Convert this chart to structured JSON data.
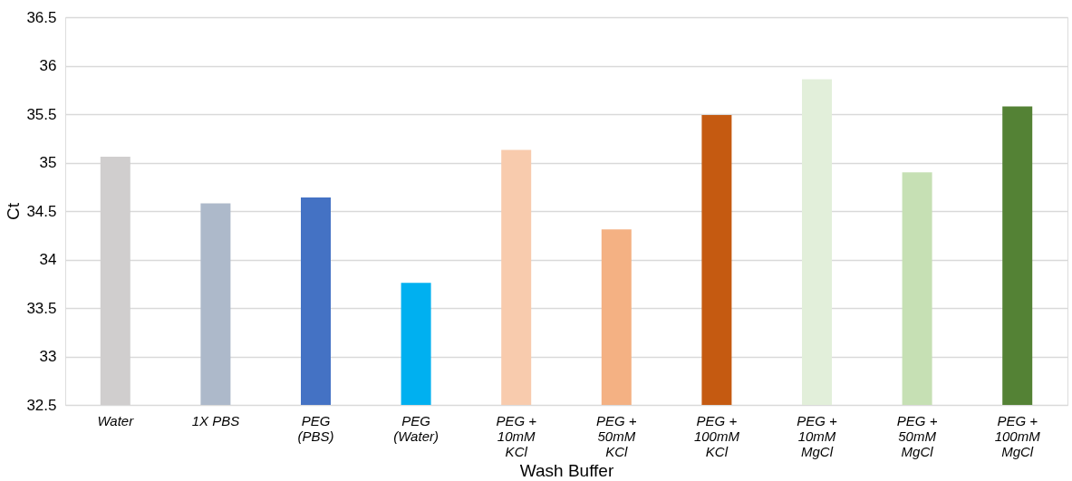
{
  "chart_data": {
    "type": "bar",
    "xlabel": "Wash Buffer",
    "ylabel": "Ct",
    "categories": [
      "Water",
      "1X PBS",
      "PEG\n(PBS)",
      "PEG\n(Water)",
      "PEG +\n10mM\nKCl",
      "PEG +\n50mM\nKCl",
      "PEG +\n100mM\nKCl",
      "PEG +\n10mM\nMgCl",
      "PEG +\n50mM\nMgCl",
      "PEG +\n100mM\nMgCl"
    ],
    "values": [
      35.06,
      34.58,
      34.64,
      33.76,
      35.13,
      34.31,
      35.49,
      35.86,
      34.9,
      35.58
    ],
    "colors": [
      "#d0cece",
      "#adb9ca",
      "#4472c4",
      "#00b0f0",
      "#f8cbad",
      "#f4b183",
      "#c55a11",
      "#e2efda",
      "#c6e0b4",
      "#548235"
    ],
    "ylim": [
      32.5,
      36.5
    ],
    "yticks": [
      32.5,
      33,
      33.5,
      34,
      34.5,
      35,
      35.5,
      36,
      36.5
    ],
    "grid": "y"
  }
}
